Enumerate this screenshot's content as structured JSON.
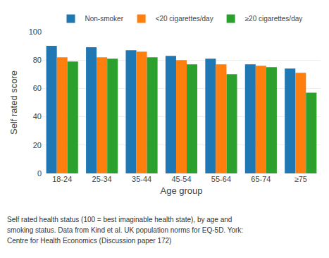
{
  "chart_data": {
    "type": "bar",
    "categories": [
      "18-24",
      "25-34",
      "35-44",
      "45-54",
      "55-64",
      "65-74",
      "≥75"
    ],
    "series": [
      {
        "name": "Non-smoker",
        "values": [
          90,
          89,
          87,
          83,
          81,
          77,
          74
        ]
      },
      {
        "name": "<20 cigarettes/day",
        "values": [
          82,
          82,
          86,
          80,
          77,
          76,
          71
        ]
      },
      {
        "name": "≥20 cigarettes/day",
        "values": [
          79,
          81,
          82,
          77,
          70,
          75,
          57
        ]
      }
    ],
    "ylabel": "Self rated score",
    "xlabel": "Age group",
    "ylim": [
      0,
      100
    ],
    "yticks": [
      0,
      20,
      40,
      60,
      80,
      100
    ],
    "grid": true,
    "annotations": [
      "Self rated health status (100 = best imaginable health state), by age and",
      "smoking status. Data from Kind et al. UK population norms for EQ-5D. York:",
      "Centre for Health Economics (Discussion paper 172)"
    ]
  }
}
